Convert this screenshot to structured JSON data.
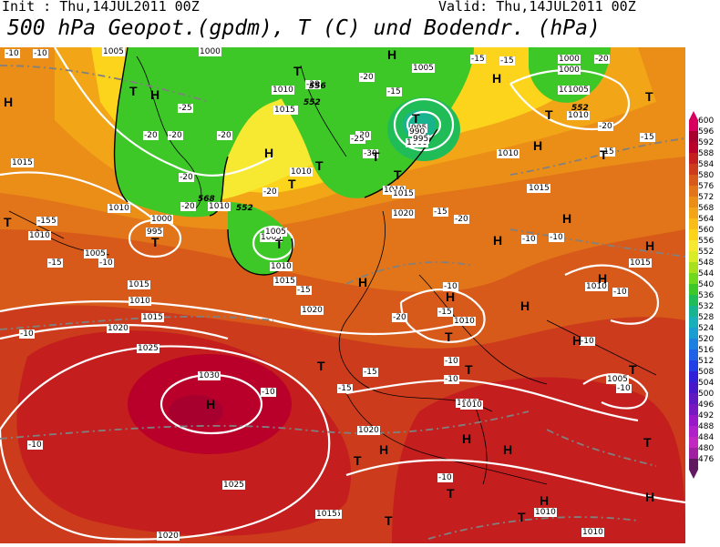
{
  "header": {
    "init": "Init : Thu,14JUL2011 00Z",
    "valid": "Valid: Thu,14JUL2011 00Z",
    "title": "500 hPa Geopot.(gpdm), T (C) und Bodendr. (hPa)"
  },
  "legend": {
    "labels": [
      "600",
      "596",
      "592",
      "588",
      "584",
      "580",
      "576",
      "572",
      "568",
      "564",
      "560",
      "556",
      "552",
      "548",
      "544",
      "540",
      "536",
      "532",
      "528",
      "524",
      "520",
      "516",
      "512",
      "508",
      "504",
      "500",
      "496",
      "492",
      "488",
      "484",
      "480",
      "476"
    ],
    "colors": [
      "#d8005e",
      "#a8002e",
      "#b8002a",
      "#c41e1e",
      "#cc3c1c",
      "#d85a1a",
      "#e27419",
      "#ea8e18",
      "#f2a617",
      "#f8bd18",
      "#fbd41b",
      "#f7e832",
      "#d8ec28",
      "#a8e020",
      "#70d81e",
      "#3ec828",
      "#20bc58",
      "#18b490",
      "#18b0b8",
      "#1a9ed2",
      "#1c80e0",
      "#1e60e6",
      "#2040e6",
      "#3020d8",
      "#4818c8",
      "#6018c0",
      "#7818c0",
      "#9818c8",
      "#b020c8",
      "#c028c0",
      "#a020a0",
      "#601860"
    ]
  },
  "map": {
    "pressure_labels": [
      "1005",
      "1000",
      "1000",
      "1005",
      "1010",
      "1015",
      "1015",
      "1010",
      "1010",
      "995",
      "1000",
      "1005",
      "1010",
      "1015",
      "1010",
      "1015",
      "1000",
      "995",
      "1005",
      "1010",
      "1015",
      "1005",
      "1010",
      "1015",
      "1020",
      "1015",
      "1010",
      "1020",
      "1025",
      "1030",
      "1025",
      "1020",
      "1015",
      "1020",
      "1015",
      "1010",
      "1010",
      "1010",
      "1005",
      "1015",
      "1010",
      "1005",
      "990",
      "995",
      "1000",
      "1005",
      "1010",
      "1015",
      "1010",
      "1010",
      "1020",
      "1010",
      "1015",
      "1000",
      "1005",
      "1010",
      "1020",
      "1015"
    ],
    "temp_labels": [
      "-10",
      "-15",
      "-20",
      "-20",
      "-25",
      "-20",
      "-20",
      "-20",
      "-20",
      "-20",
      "-15",
      "-20",
      "-15",
      "-25",
      "-30",
      "-20",
      "-20",
      "-15",
      "-20",
      "-20",
      "-15",
      "-15",
      "-10",
      "-15",
      "-10",
      "-10",
      "-20",
      "-15",
      "-10",
      "-15",
      "-10",
      "-15",
      "-10",
      "-10",
      "-10",
      "-15",
      "-10",
      "-10",
      "-10",
      "-10",
      "-10",
      "-15",
      "-10",
      "-15"
    ],
    "h_labels": [
      "H",
      "H",
      "H",
      "H",
      "H",
      "H",
      "H",
      "H",
      "H",
      "H",
      "H",
      "H",
      "H",
      "H",
      "H",
      "H",
      "H",
      "H",
      "H",
      "H"
    ],
    "t_labels": [
      "T",
      "T",
      "T",
      "T",
      "T",
      "T",
      "T",
      "T",
      "T",
      "T",
      "T",
      "T",
      "T",
      "T",
      "T",
      "T",
      "T",
      "T",
      "T",
      "T",
      "T",
      "T"
    ],
    "height_labels": [
      "552",
      "552",
      "568",
      "552",
      "556"
    ]
  }
}
